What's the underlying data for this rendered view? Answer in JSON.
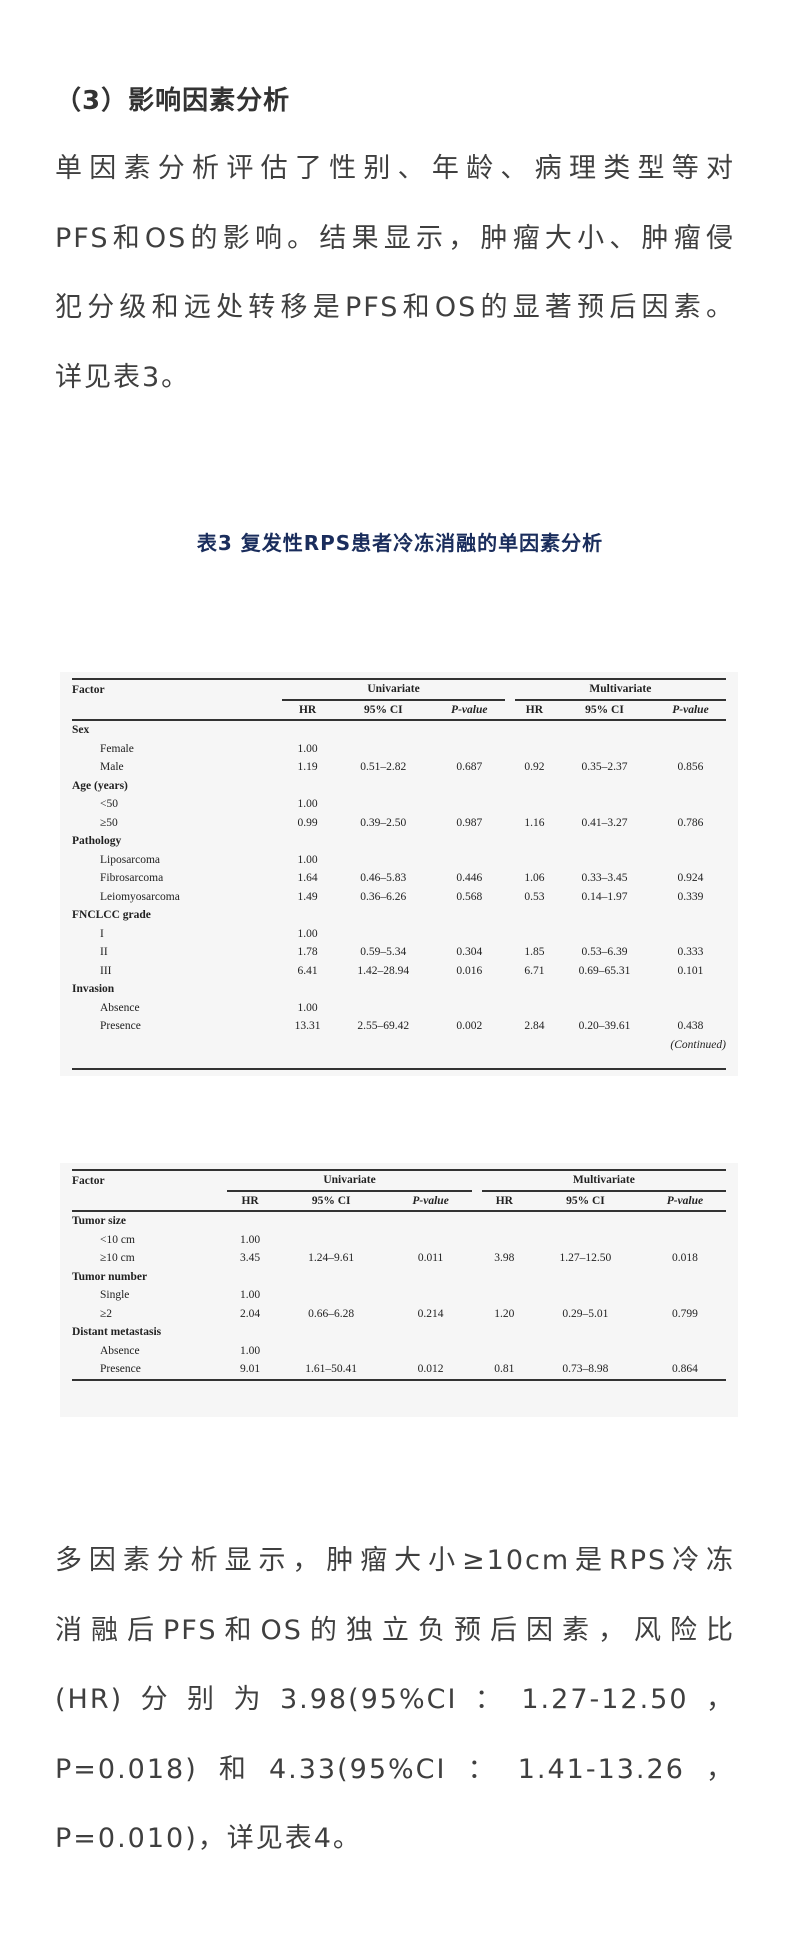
{
  "heading": "（3）影响因素分析",
  "para1": [
    "单因素分析评估了性别、年龄、病理类型等对",
    "PFS和OS的影响。结果显示，肿瘤大小、肿瘤侵",
    "犯分级和远处转移是PFS和OS的显著预后因素。",
    "详见表3。"
  ],
  "caption": "表3 复发性RPS患者冷冻消融的单因素分析",
  "table_header": {
    "factor": "Factor",
    "univariate": "Univariate",
    "multivariate": "Multivariate",
    "hr": "HR",
    "ci": "95% CI",
    "p": "P-value"
  },
  "table1": {
    "rows": [
      {
        "factor": "Sex",
        "group": true
      },
      {
        "factor": "Female",
        "u_hr": "1.00"
      },
      {
        "factor": "Male",
        "u_hr": "1.19",
        "u_ci": "0.51–2.82",
        "u_p": "0.687",
        "m_hr": "0.92",
        "m_ci": "0.35–2.37",
        "m_p": "0.856"
      },
      {
        "factor": "Age (years)",
        "group": true
      },
      {
        "factor": "<50",
        "u_hr": "1.00"
      },
      {
        "factor": "≥50",
        "u_hr": "0.99",
        "u_ci": "0.39–2.50",
        "u_p": "0.987",
        "m_hr": "1.16",
        "m_ci": "0.41–3.27",
        "m_p": "0.786"
      },
      {
        "factor": "Pathology",
        "group": true
      },
      {
        "factor": "Liposarcoma",
        "u_hr": "1.00"
      },
      {
        "factor": "Fibrosarcoma",
        "u_hr": "1.64",
        "u_ci": "0.46–5.83",
        "u_p": "0.446",
        "m_hr": "1.06",
        "m_ci": "0.33–3.45",
        "m_p": "0.924"
      },
      {
        "factor": "Leiomyosarcoma",
        "u_hr": "1.49",
        "u_ci": "0.36–6.26",
        "u_p": "0.568",
        "m_hr": "0.53",
        "m_ci": "0.14–1.97",
        "m_p": "0.339"
      },
      {
        "factor": "FNCLCC grade",
        "group": true
      },
      {
        "factor": "I",
        "u_hr": "1.00"
      },
      {
        "factor": "II",
        "u_hr": "1.78",
        "u_ci": "0.59–5.34",
        "u_p": "0.304",
        "m_hr": "1.85",
        "m_ci": "0.53–6.39",
        "m_p": "0.333"
      },
      {
        "factor": "III",
        "u_hr": "6.41",
        "u_ci": "1.42–28.94",
        "u_p": "0.016",
        "m_hr": "6.71",
        "m_ci": "0.69–65.31",
        "m_p": "0.101"
      },
      {
        "factor": "Invasion",
        "group": true
      },
      {
        "factor": "Absence",
        "u_hr": "1.00"
      },
      {
        "factor": "Presence",
        "u_hr": "13.31",
        "u_ci": "2.55–69.42",
        "u_p": "0.002",
        "m_hr": "2.84",
        "m_ci": "0.20–39.61",
        "m_p": "0.438"
      }
    ],
    "continued": "(Continued)"
  },
  "table2": {
    "rows": [
      {
        "factor": "Tumor size",
        "group": true
      },
      {
        "factor": "<10 cm",
        "u_hr": "1.00"
      },
      {
        "factor": "≥10 cm",
        "u_hr": "3.45",
        "u_ci": "1.24–9.61",
        "u_p": "0.011",
        "m_hr": "3.98",
        "m_ci": "1.27–12.50",
        "m_p": "0.018"
      },
      {
        "factor": "Tumor number",
        "group": true
      },
      {
        "factor": "Single",
        "u_hr": "1.00"
      },
      {
        "factor": "≥2",
        "u_hr": "2.04",
        "u_ci": "0.66–6.28",
        "u_p": "0.214",
        "m_hr": "1.20",
        "m_ci": "0.29–5.01",
        "m_p": "0.799"
      },
      {
        "factor": "Distant metastasis",
        "group": true
      },
      {
        "factor": "Absence",
        "u_hr": "1.00"
      },
      {
        "factor": "Presence",
        "u_hr": "9.01",
        "u_ci": "1.61–50.41",
        "u_p": "0.012",
        "m_hr": "0.81",
        "m_ci": "0.73–8.98",
        "m_p": "0.864"
      }
    ]
  },
  "para2": [
    "多因素分析显示，肿瘤大小≥10cm是RPS冷冻",
    "消融后PFS和OS的独立负预后因素，风险比",
    "(HR)分别为3.98(95%CI：1.27-12.50，",
    "P=0.018)和4.33(95%CI：1.41-13.26，",
    "P=0.010)，详见表4。"
  ]
}
